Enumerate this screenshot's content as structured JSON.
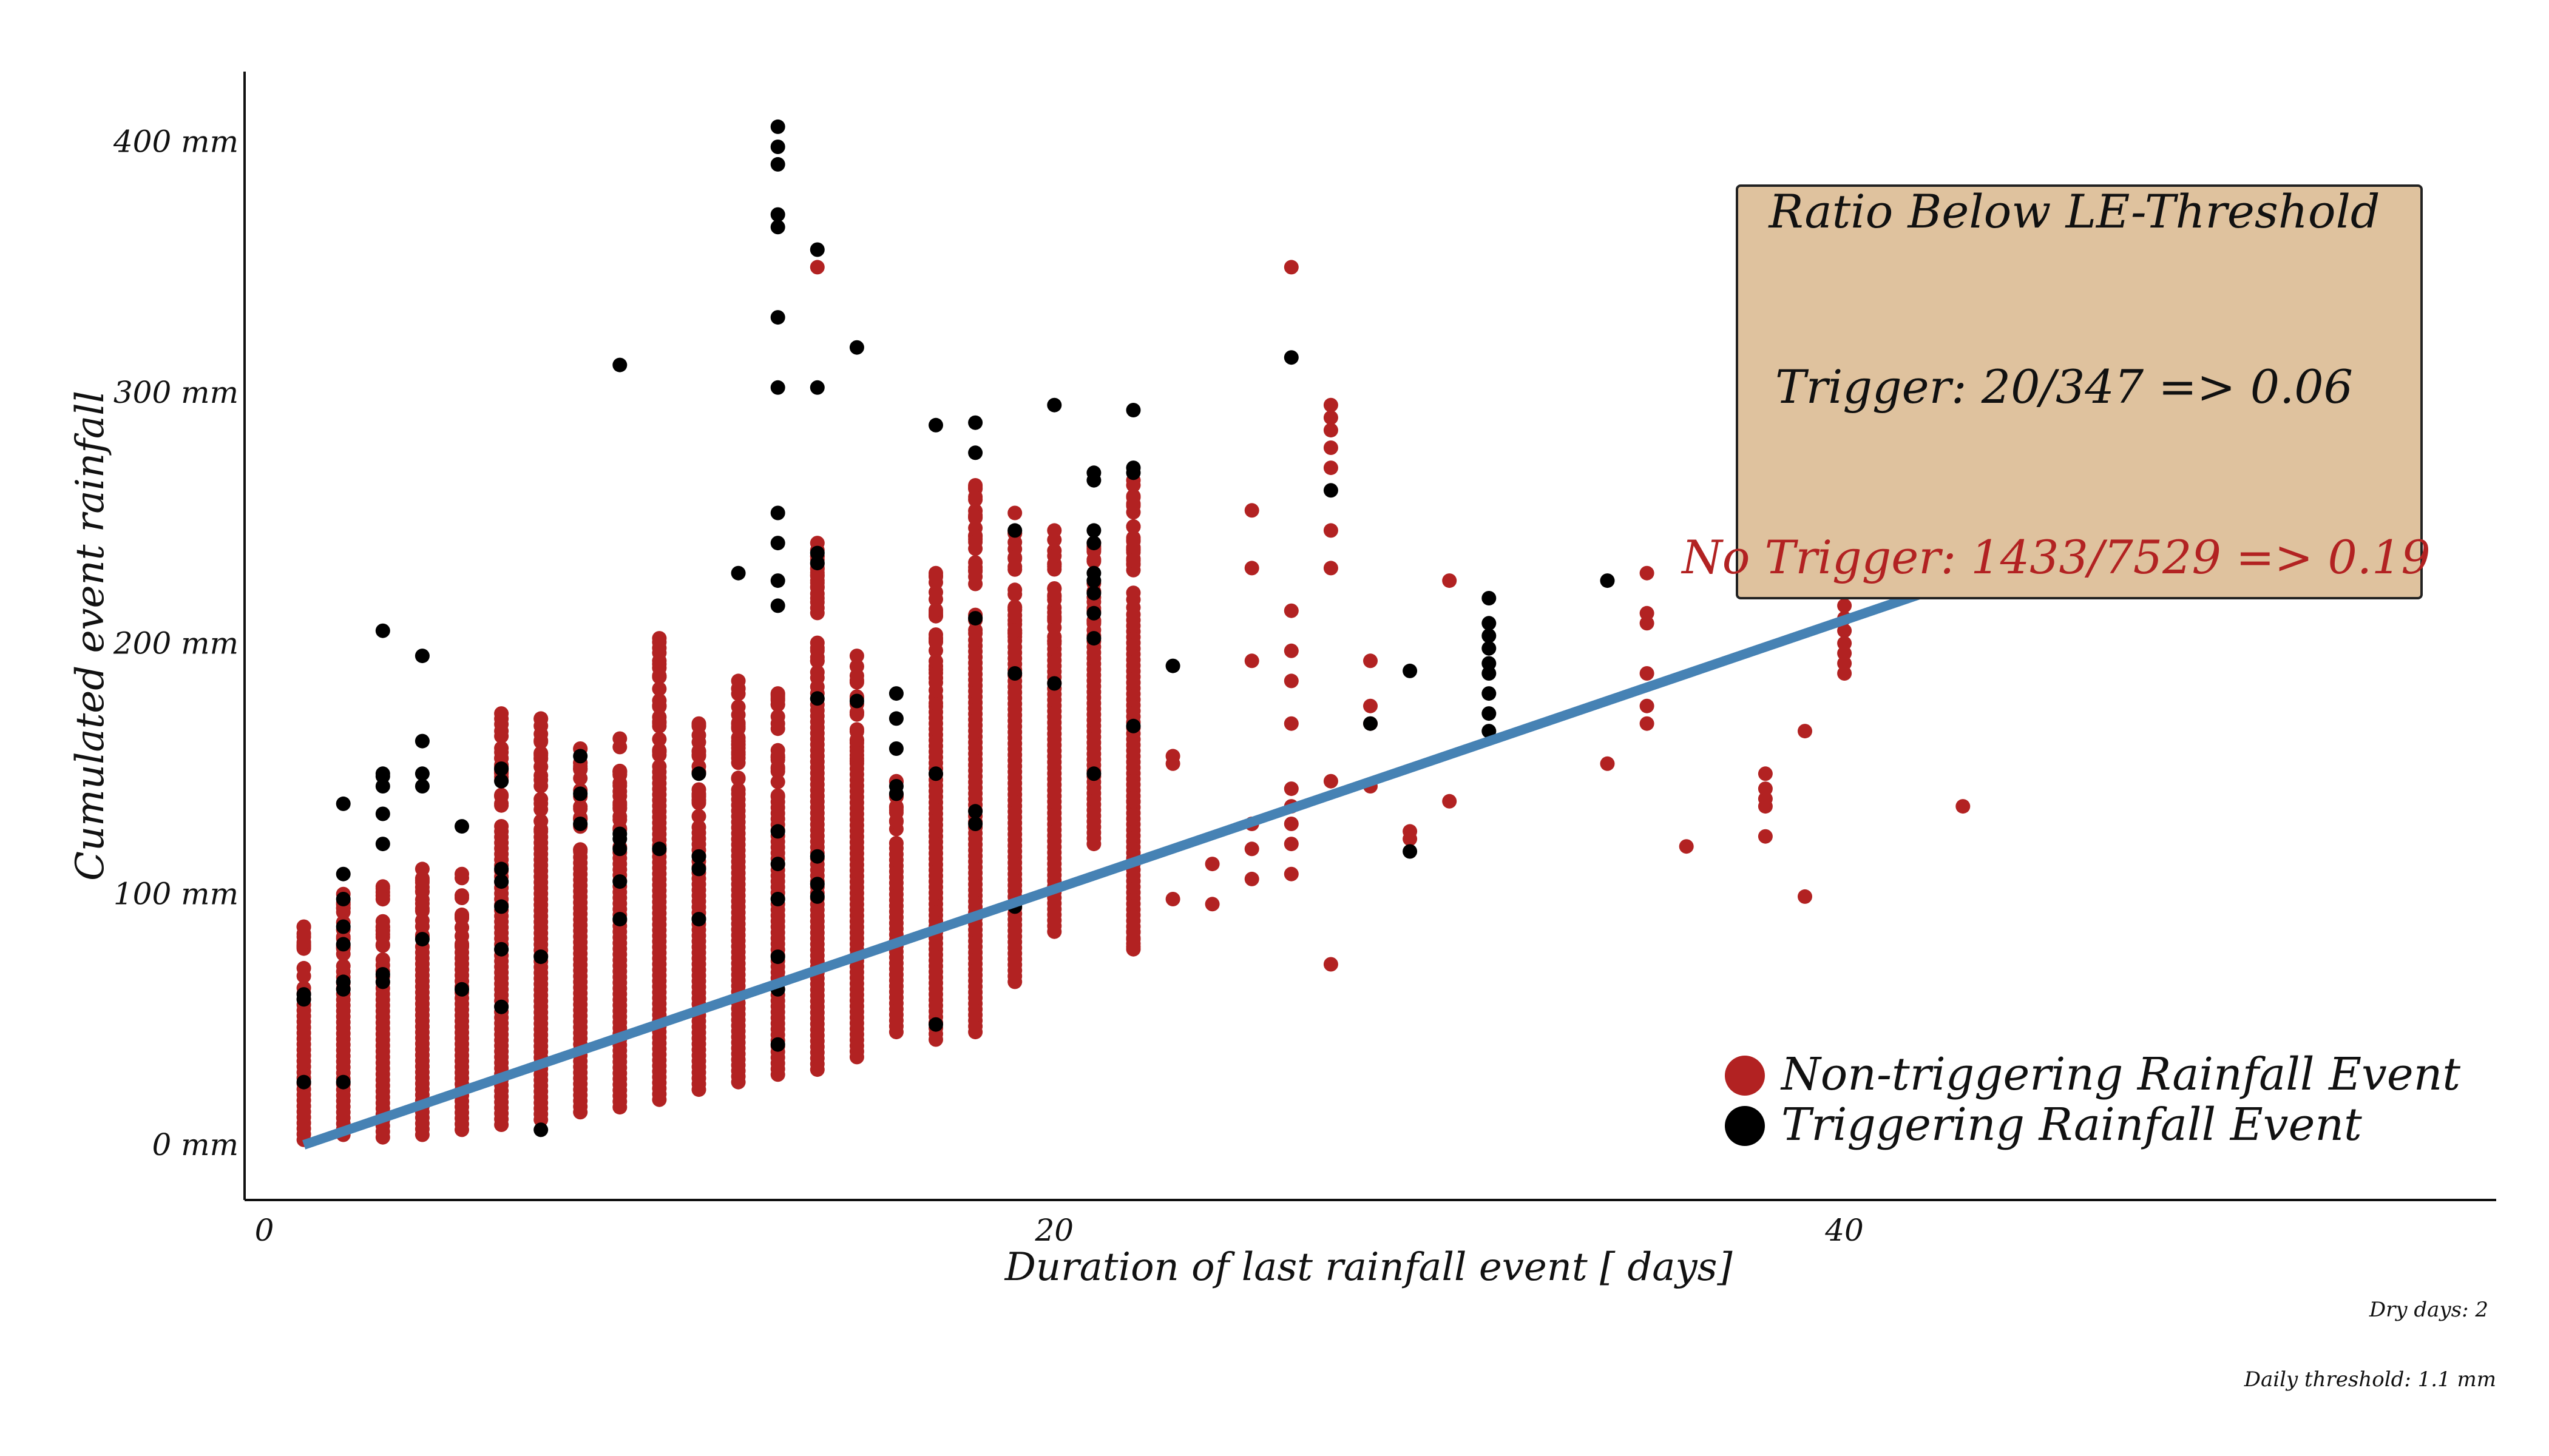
{
  "colors": {
    "non_trigger": "#b22222",
    "trigger": "#000000",
    "threshold_line": "#4682b4",
    "box_fill": "#dfc29e",
    "box_stroke": "#222222",
    "no_trigger_text": "#b22222"
  },
  "chart_data": {
    "type": "scatter",
    "xlabel": "Duration of last rainfall event [ days]",
    "ylabel": "Cumulated event rainfall",
    "xlim": [
      -0.5,
      56.5
    ],
    "ylim": [
      -22,
      428
    ],
    "x_ticks": [
      0,
      20,
      40
    ],
    "x_tick_labels": [
      "0",
      "20",
      "40"
    ],
    "y_ticks": [
      0,
      100,
      200,
      300,
      400
    ],
    "y_tick_labels": [
      "0 mm",
      "100 mm",
      "200 mm",
      "300 mm",
      "400 mm"
    ],
    "grid": false,
    "legend_position": "bottom-right",
    "threshold": {
      "type": "line",
      "points": [
        [
          1,
          0
        ],
        [
          42,
          220
        ]
      ]
    },
    "annotation_box": {
      "title": "Ratio Below LE-Threshold",
      "trigger_line": "Trigger: 20/347 => 0.06",
      "no_trigger_line": "No Trigger: 1433/7529 => 0.19"
    },
    "footnotes": [
      "Dry days: 2",
      "Daily threshold: 1.1 mm"
    ],
    "series": [
      {
        "name": "Non-triggering Rainfall Event",
        "kind": "non_trigger",
        "columns": [
          {
            "x": 1,
            "range": [
              2,
              87
            ]
          },
          {
            "x": 2,
            "range": [
              4,
              100
            ]
          },
          {
            "x": 3,
            "range": [
              3,
              103
            ]
          },
          {
            "x": 4,
            "range": [
              4,
              110
            ]
          },
          {
            "x": 5,
            "range": [
              6,
              108
            ]
          },
          {
            "x": 6,
            "range": [
              8,
              172
            ]
          },
          {
            "x": 7,
            "range": [
              10,
              170
            ]
          },
          {
            "x": 8,
            "range": [
              13,
              158
            ]
          },
          {
            "x": 9,
            "range": [
              15,
              162
            ]
          },
          {
            "x": 10,
            "range": [
              18,
              202
            ]
          },
          {
            "x": 11,
            "range": [
              22,
              168
            ]
          },
          {
            "x": 12,
            "range": [
              25,
              185
            ]
          },
          {
            "x": 13,
            "range": [
              28,
              180
            ]
          },
          {
            "x": 14,
            "range": [
              30,
              240
            ]
          },
          {
            "x": 15,
            "range": [
              35,
              195
            ]
          },
          {
            "x": 16,
            "range": [
              45,
              145
            ]
          },
          {
            "x": 17,
            "range": [
              42,
              228
            ]
          },
          {
            "x": 18,
            "range": [
              45,
              263
            ]
          },
          {
            "x": 19,
            "range": [
              65,
              252
            ]
          },
          {
            "x": 20,
            "range": [
              85,
              245
            ]
          },
          {
            "x": 21,
            "range": [
              120,
              240
            ]
          },
          {
            "x": 22,
            "range": [
              78,
              265
            ]
          }
        ],
        "points": [
          [
            14,
            350
          ],
          [
            26,
            350
          ],
          [
            27,
            295
          ],
          [
            27,
            290
          ],
          [
            27,
            285
          ],
          [
            27,
            278
          ],
          [
            27,
            270
          ],
          [
            27,
            245
          ],
          [
            27,
            230
          ],
          [
            27,
            145
          ],
          [
            27,
            72
          ],
          [
            25,
            253
          ],
          [
            25,
            230
          ],
          [
            25,
            193
          ],
          [
            25,
            128
          ],
          [
            25,
            118
          ],
          [
            25,
            106
          ],
          [
            26,
            213
          ],
          [
            26,
            197
          ],
          [
            26,
            185
          ],
          [
            26,
            168
          ],
          [
            26,
            142
          ],
          [
            26,
            135
          ],
          [
            26,
            128
          ],
          [
            26,
            120
          ],
          [
            26,
            108
          ],
          [
            28,
            193
          ],
          [
            28,
            175
          ],
          [
            28,
            168
          ],
          [
            28,
            143
          ],
          [
            29,
            125
          ],
          [
            29,
            122
          ],
          [
            30,
            225
          ],
          [
            30,
            137
          ],
          [
            23,
            155
          ],
          [
            23,
            152
          ],
          [
            23,
            98
          ],
          [
            24,
            112
          ],
          [
            24,
            96
          ],
          [
            22,
            85
          ],
          [
            22,
            82
          ],
          [
            22,
            79
          ],
          [
            22,
            137
          ],
          [
            22,
            233
          ],
          [
            35,
            228
          ],
          [
            35,
            212
          ],
          [
            35,
            208
          ],
          [
            35,
            188
          ],
          [
            35,
            175
          ],
          [
            35,
            168
          ],
          [
            34,
            152
          ],
          [
            36,
            119
          ],
          [
            38,
            148
          ],
          [
            38,
            142
          ],
          [
            38,
            138
          ],
          [
            38,
            135
          ],
          [
            38,
            123
          ],
          [
            39,
            165
          ],
          [
            39,
            99
          ],
          [
            40,
            215
          ],
          [
            40,
            210
          ],
          [
            40,
            205
          ],
          [
            40,
            200
          ],
          [
            40,
            196
          ],
          [
            40,
            192
          ],
          [
            40,
            188
          ],
          [
            43,
            135
          ]
        ]
      },
      {
        "name": "Triggering Rainfall Event",
        "kind": "trigger",
        "points": [
          [
            1,
            25
          ],
          [
            1,
            58
          ],
          [
            1,
            60
          ],
          [
            2,
            25
          ],
          [
            2,
            62
          ],
          [
            2,
            65
          ],
          [
            2,
            80
          ],
          [
            2,
            87
          ],
          [
            2,
            98
          ],
          [
            2,
            108
          ],
          [
            2,
            136
          ],
          [
            3,
            65
          ],
          [
            3,
            68
          ],
          [
            3,
            120
          ],
          [
            3,
            132
          ],
          [
            3,
            143
          ],
          [
            3,
            147
          ],
          [
            3,
            148
          ],
          [
            3,
            205
          ],
          [
            4,
            82
          ],
          [
            4,
            143
          ],
          [
            4,
            148
          ],
          [
            4,
            161
          ],
          [
            4,
            195
          ],
          [
            5,
            62
          ],
          [
            5,
            127
          ],
          [
            6,
            55
          ],
          [
            6,
            78
          ],
          [
            6,
            95
          ],
          [
            6,
            105
          ],
          [
            6,
            110
          ],
          [
            6,
            145
          ],
          [
            6,
            150
          ],
          [
            7,
            6
          ],
          [
            7,
            75
          ],
          [
            8,
            128
          ],
          [
            8,
            140
          ],
          [
            8,
            155
          ],
          [
            9,
            90
          ],
          [
            9,
            105
          ],
          [
            9,
            118
          ],
          [
            9,
            122
          ],
          [
            9,
            124
          ],
          [
            9,
            311
          ],
          [
            10,
            118
          ],
          [
            11,
            115
          ],
          [
            11,
            110
          ],
          [
            11,
            90
          ],
          [
            11,
            148
          ],
          [
            12,
            228
          ],
          [
            13,
            40
          ],
          [
            13,
            62
          ],
          [
            13,
            75
          ],
          [
            13,
            98
          ],
          [
            13,
            112
          ],
          [
            13,
            125
          ],
          [
            13,
            215
          ],
          [
            13,
            225
          ],
          [
            13,
            240
          ],
          [
            13,
            252
          ],
          [
            13,
            302
          ],
          [
            13,
            330
          ],
          [
            13,
            366
          ],
          [
            13,
            371
          ],
          [
            13,
            391
          ],
          [
            13,
            398
          ],
          [
            13,
            406
          ],
          [
            14,
            99
          ],
          [
            14,
            104
          ],
          [
            14,
            115
          ],
          [
            14,
            178
          ],
          [
            14,
            232
          ],
          [
            14,
            236
          ],
          [
            14,
            302
          ],
          [
            14,
            357
          ],
          [
            15,
            177
          ],
          [
            15,
            318
          ],
          [
            16,
            140
          ],
          [
            16,
            143
          ],
          [
            16,
            158
          ],
          [
            16,
            170
          ],
          [
            16,
            180
          ],
          [
            17,
            48
          ],
          [
            17,
            148
          ],
          [
            17,
            287
          ],
          [
            18,
            128
          ],
          [
            18,
            133
          ],
          [
            18,
            210
          ],
          [
            18,
            276
          ],
          [
            18,
            288
          ],
          [
            19,
            95
          ],
          [
            19,
            188
          ],
          [
            19,
            245
          ],
          [
            20,
            184
          ],
          [
            20,
            295
          ],
          [
            21,
            148
          ],
          [
            21,
            202
          ],
          [
            21,
            212
          ],
          [
            21,
            220
          ],
          [
            21,
            225
          ],
          [
            21,
            228
          ],
          [
            21,
            240
          ],
          [
            21,
            245
          ],
          [
            21,
            265
          ],
          [
            21,
            268
          ],
          [
            22,
            167
          ],
          [
            22,
            268
          ],
          [
            22,
            270
          ],
          [
            22,
            293
          ],
          [
            23,
            191
          ],
          [
            26,
            314
          ],
          [
            27,
            261
          ],
          [
            28,
            168
          ],
          [
            29,
            117
          ],
          [
            29,
            189
          ],
          [
            31,
            165
          ],
          [
            31,
            172
          ],
          [
            31,
            180
          ],
          [
            31,
            188
          ],
          [
            31,
            192
          ],
          [
            31,
            198
          ],
          [
            31,
            203
          ],
          [
            31,
            208
          ],
          [
            31,
            218
          ],
          [
            34,
            225
          ]
        ]
      }
    ]
  }
}
